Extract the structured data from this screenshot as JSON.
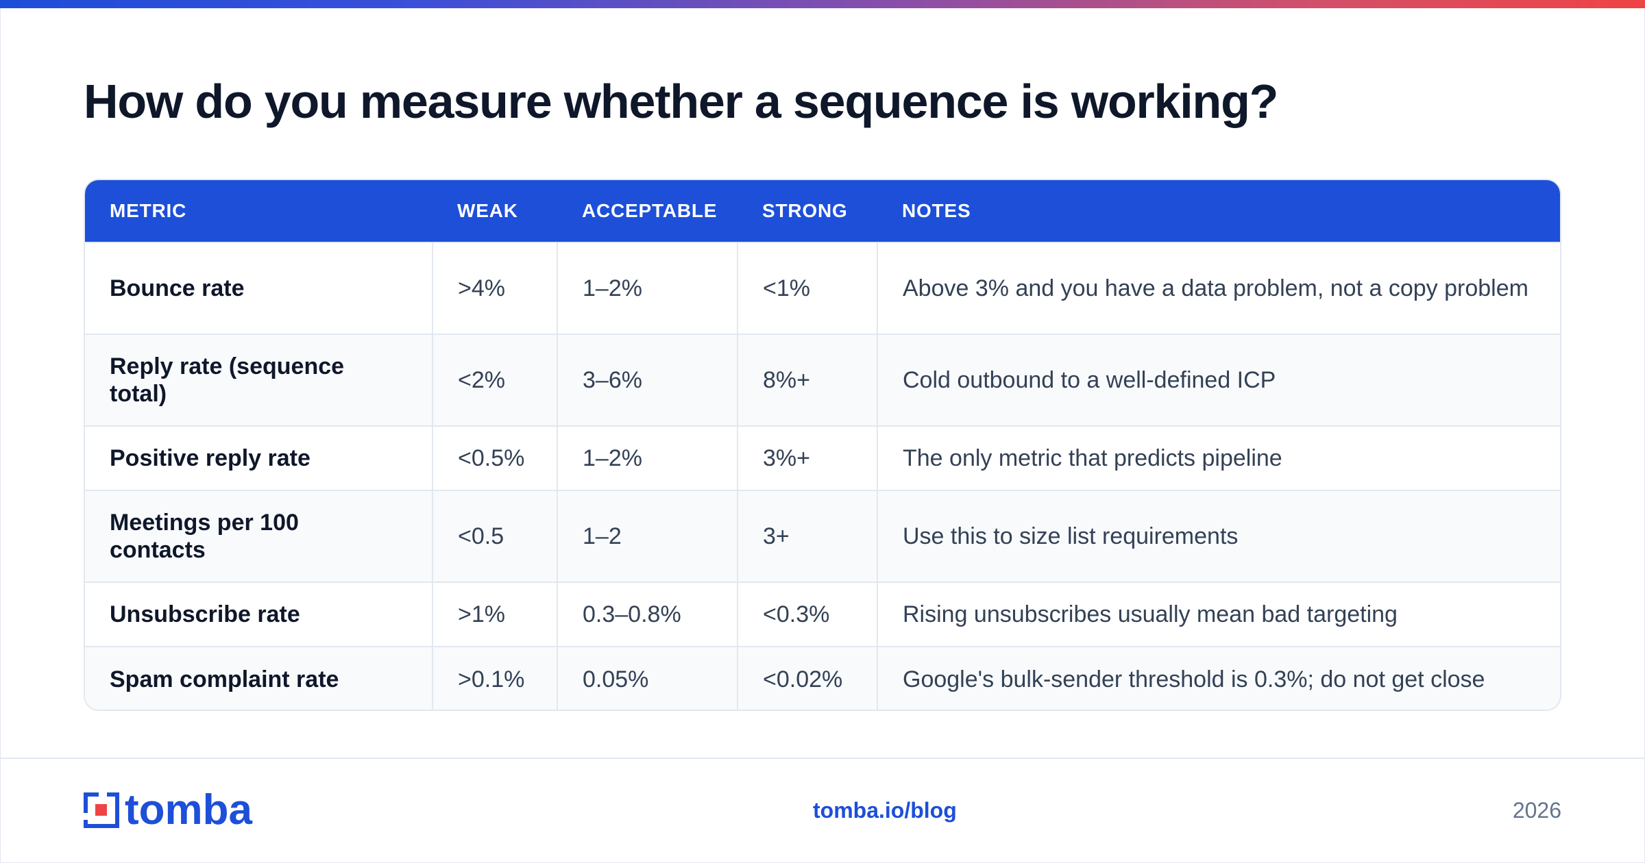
{
  "title": "How do you measure whether a sequence is working?",
  "table": {
    "headers": [
      "METRIC",
      "WEAK",
      "ACCEPTABLE",
      "STRONG",
      "NOTES"
    ],
    "rows": [
      {
        "metric": "Bounce rate",
        "weak": ">4%",
        "acceptable": "1–2%",
        "strong": "<1%",
        "notes": "Above 3% and you have a data problem, not a copy problem"
      },
      {
        "metric": "Reply rate (sequence total)",
        "weak": "<2%",
        "acceptable": "3–6%",
        "strong": "8%+",
        "notes": "Cold outbound to a well-defined ICP"
      },
      {
        "metric": "Positive reply rate",
        "weak": "<0.5%",
        "acceptable": "1–2%",
        "strong": "3%+",
        "notes": "The only metric that predicts pipeline"
      },
      {
        "metric": "Meetings per 100 contacts",
        "weak": "<0.5",
        "acceptable": "1–2",
        "strong": "3+",
        "notes": "Use this to size list requirements"
      },
      {
        "metric": "Unsubscribe rate",
        "weak": ">1%",
        "acceptable": "0.3–0.8%",
        "strong": "<0.3%",
        "notes": "Rising unsubscribes usually mean bad targeting"
      },
      {
        "metric": "Spam complaint rate",
        "weak": ">0.1%",
        "acceptable": "0.05%",
        "strong": "<0.02%",
        "notes": "Google's bulk-sender threshold is 0.3%; do not get close"
      }
    ]
  },
  "footer": {
    "logo_text": "tomba",
    "link": "tomba.io/blog",
    "year": "2026"
  },
  "colors": {
    "brand_blue": "#1d4fd8",
    "brand_red": "#ef4444",
    "title_text": "#0f172a",
    "muted": "#64748b"
  }
}
